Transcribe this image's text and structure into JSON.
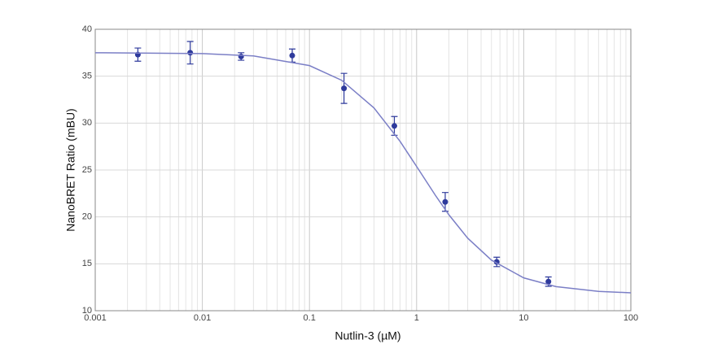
{
  "chart_data": {
    "type": "scatter",
    "x_label": "Nutlin-3 (µM)",
    "y_label": "NanoBRET Ratio (mBU)",
    "xscale": "log",
    "xlim": [
      0.001,
      100
    ],
    "xticks": [
      0.001,
      0.01,
      0.1,
      1,
      10,
      100
    ],
    "xminor_ticks": [
      0.002,
      0.003,
      0.004,
      0.005,
      0.006,
      0.007,
      0.008,
      0.009,
      0.02,
      0.03,
      0.04,
      0.05,
      0.06,
      0.07,
      0.08,
      0.09,
      0.2,
      0.3,
      0.4,
      0.5,
      0.6,
      0.7,
      0.8,
      0.9,
      2,
      3,
      4,
      5,
      6,
      7,
      8,
      9,
      20,
      30,
      40,
      50,
      60,
      70,
      80,
      90
    ],
    "ylim": [
      10,
      40
    ],
    "yticks": [
      10,
      15,
      20,
      25,
      30,
      35,
      40
    ],
    "grid": true,
    "series": [
      {
        "kind": "points",
        "color": "#2e3a9c",
        "x": [
          0.0025,
          0.0077,
          0.023,
          0.069,
          0.21,
          0.62,
          1.85,
          5.6,
          17
        ],
        "values": [
          37.3,
          37.5,
          37.1,
          37.2,
          33.7,
          29.7,
          21.6,
          15.2,
          13.1
        ],
        "errors": [
          0.7,
          1.2,
          0.4,
          0.7,
          1.6,
          1.0,
          1.0,
          0.5,
          0.5
        ]
      },
      {
        "kind": "curve",
        "color": "#7b7fc6",
        "x": [
          0.001,
          0.01,
          0.03,
          0.1,
          0.2,
          0.4,
          0.7,
          1,
          1.5,
          2,
          3,
          5,
          10,
          20,
          50,
          100
        ],
        "values": [
          37.5,
          37.41,
          37.16,
          36.13,
          34.56,
          31.62,
          28.06,
          25.38,
          22.29,
          20.23,
          17.73,
          15.39,
          13.5,
          12.57,
          12.06,
          11.91
        ]
      }
    ]
  }
}
